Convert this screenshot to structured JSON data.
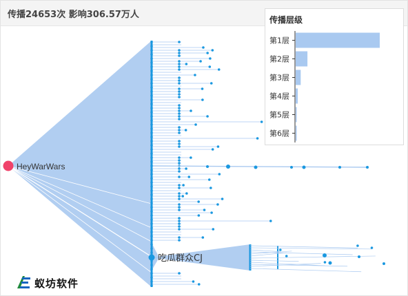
{
  "header": {
    "title": "传播24653次 影响306.57万人"
  },
  "tree": {
    "root_label": "HeyWarWars",
    "hub_label": "吃瓜群众CJ",
    "colors": {
      "root": "#f0426a",
      "node": "#1a98e0",
      "fan": "#a9c9f0",
      "link": "#a9c9f0"
    }
  },
  "chart_data": {
    "type": "bar",
    "title": "传播层级",
    "categories": [
      "第1层",
      "第2层",
      "第3层",
      "第4层",
      "第5层",
      "第6层"
    ],
    "values": [
      100,
      14,
      6,
      2.5,
      1.2,
      0.6
    ],
    "xlabel": "",
    "ylabel": "",
    "bar_color": "#a9c9f0"
  },
  "logo": {
    "text": "蚁坊软件",
    "mark": "E-mark-icon"
  }
}
